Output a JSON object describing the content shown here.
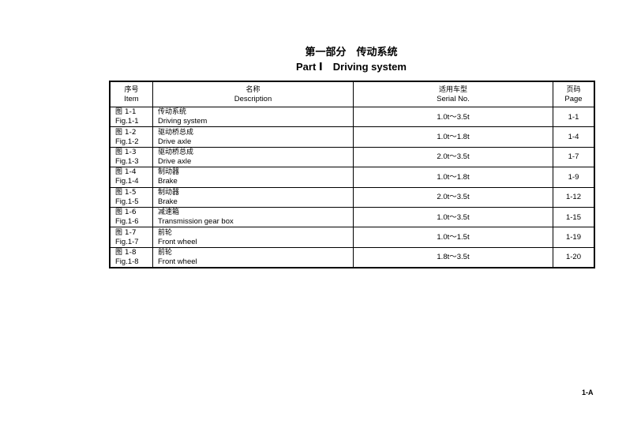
{
  "title": {
    "cn": "第一部分　传动系统",
    "en": "Part Ⅰ　Driving system"
  },
  "table": {
    "headers": [
      {
        "cn": "序号",
        "en": "Item"
      },
      {
        "cn": "名称",
        "en": "Description"
      },
      {
        "cn": "适用车型",
        "en": "Serial No."
      },
      {
        "cn": "页码",
        "en": "Page"
      }
    ],
    "rows": [
      {
        "item_cn": "图 1-1",
        "item_en": "Fig.1-1",
        "desc_cn": "传动系统",
        "desc_en": "Driving system",
        "serial": "1.0t～3.5t",
        "page": "1-1"
      },
      {
        "item_cn": "图 1-2",
        "item_en": "Fig.1-2",
        "desc_cn": "驱动桥总成",
        "desc_en": "Drive axle",
        "serial": "1.0t～1.8t",
        "page": "1-4"
      },
      {
        "item_cn": "图 1-3",
        "item_en": "Fig.1-3",
        "desc_cn": "驱动桥总成",
        "desc_en": "Drive axle",
        "serial": "2.0t～3.5t",
        "page": "1-7"
      },
      {
        "item_cn": "图 1-4",
        "item_en": "Fig.1-4",
        "desc_cn": "制动器",
        "desc_en": "Brake",
        "serial": "1.0t～1.8t",
        "page": "1-9"
      },
      {
        "item_cn": "图 1-5",
        "item_en": "Fig.1-5",
        "desc_cn": "制动器",
        "desc_en": "Brake",
        "serial": "2.0t～3.5t",
        "page": "1-12"
      },
      {
        "item_cn": "图 1-6",
        "item_en": "Fig.1-6",
        "desc_cn": "减速箱",
        "desc_en": "Transmission gear box",
        "serial": "1.0t～3.5t",
        "page": "1-15"
      },
      {
        "item_cn": "图 1-7",
        "item_en": "Fig.1-7",
        "desc_cn": "前轮",
        "desc_en": "Front wheel",
        "serial": "1.0t～1.5t",
        "page": "1-19"
      },
      {
        "item_cn": "图 1-8",
        "item_en": "Fig.1-8",
        "desc_cn": "前轮",
        "desc_en": "Front wheel",
        "serial": "1.8t～3.5t",
        "page": "1-20"
      }
    ]
  },
  "footer": {
    "page_label": "1-A"
  }
}
